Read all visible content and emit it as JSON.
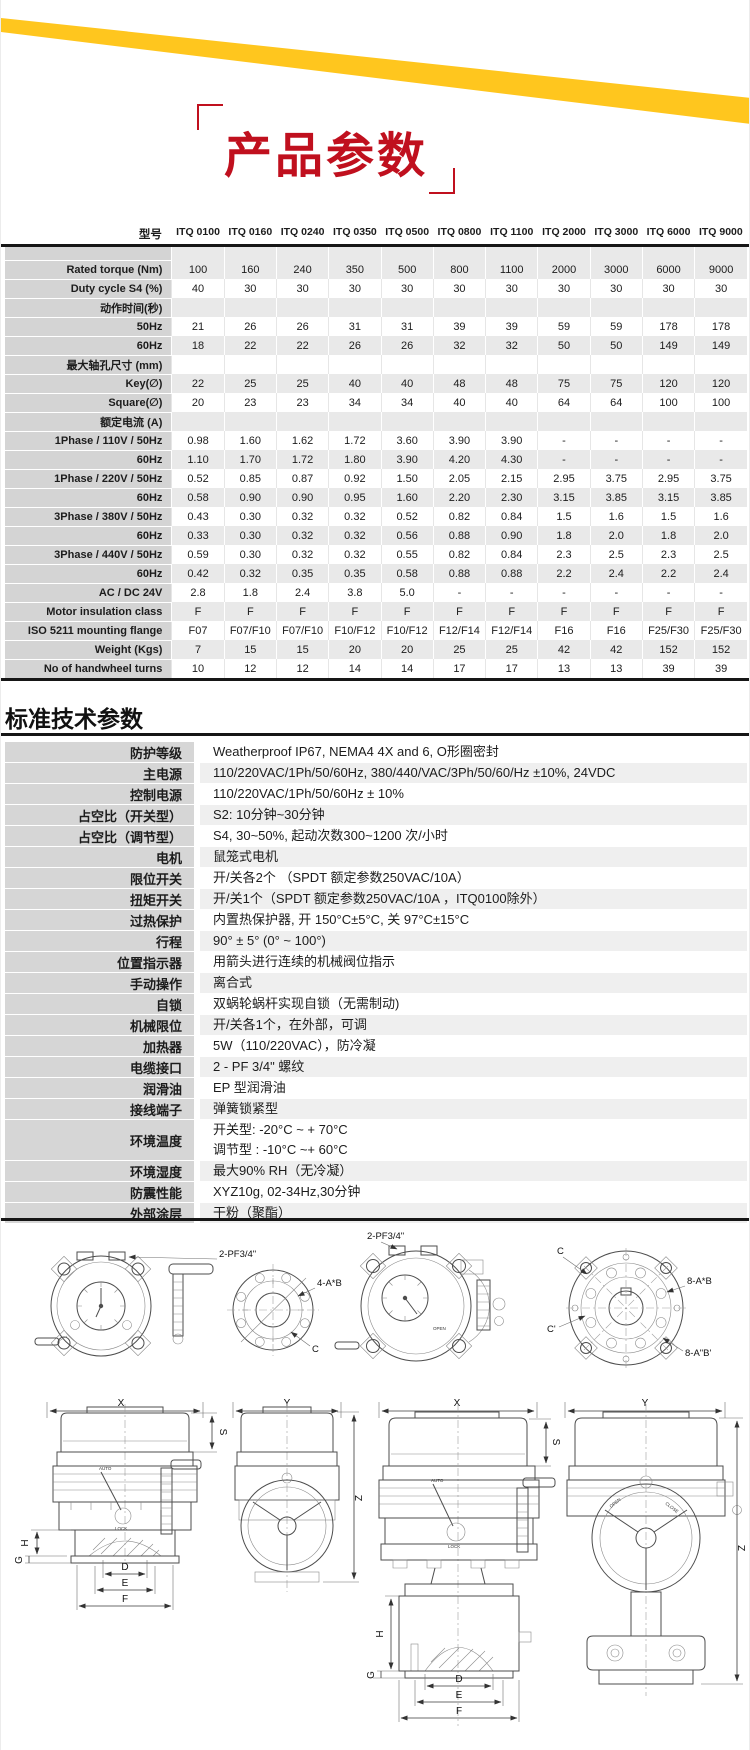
{
  "page": {
    "title": "产品参数",
    "accent_yellow": "#FFC61E",
    "accent_red": "#C0101E"
  },
  "spec_table": {
    "header_label": "型号",
    "models": [
      "ITQ 0100",
      "ITQ 0160",
      "ITQ 0240",
      "ITQ 0350",
      "ITQ 0500",
      "ITQ 0800",
      "ITQ 1100",
      "ITQ 2000",
      "ITQ 3000",
      "ITQ 6000",
      "ITQ 9000"
    ],
    "rows": [
      {
        "label": "Rated torque (Nm)",
        "values": [
          "100",
          "160",
          "240",
          "350",
          "500",
          "800",
          "1100",
          "2000",
          "3000",
          "6000",
          "9000"
        ]
      },
      {
        "label": "Duty cycle S4 (%)",
        "values": [
          "40",
          "30",
          "30",
          "30",
          "30",
          "30",
          "30",
          "30",
          "30",
          "30",
          "30"
        ]
      },
      {
        "label": "动作时间(秒)",
        "values": []
      },
      {
        "label": "50Hz",
        "values": [
          "21",
          "26",
          "26",
          "31",
          "31",
          "39",
          "39",
          "59",
          "59",
          "178",
          "178"
        ]
      },
      {
        "label": "60Hz",
        "values": [
          "18",
          "22",
          "22",
          "26",
          "26",
          "32",
          "32",
          "50",
          "50",
          "149",
          "149"
        ]
      },
      {
        "label": "最大轴孔尺寸 (mm)",
        "values": []
      },
      {
        "label": "Key(∅)",
        "values": [
          "22",
          "25",
          "25",
          "40",
          "40",
          "48",
          "48",
          "75",
          "75",
          "120",
          "120"
        ]
      },
      {
        "label": "Square(∅)",
        "values": [
          "20",
          "23",
          "23",
          "34",
          "34",
          "40",
          "40",
          "64",
          "64",
          "100",
          "100"
        ]
      },
      {
        "label": "额定电流 (A)",
        "values": []
      },
      {
        "label": "1Phase / 110V / 50Hz",
        "values": [
          "0.98",
          "1.60",
          "1.62",
          "1.72",
          "3.60",
          "3.90",
          "3.90",
          "-",
          "-",
          "-",
          "-"
        ]
      },
      {
        "label": "60Hz",
        "values": [
          "1.10",
          "1.70",
          "1.72",
          "1.80",
          "3.90",
          "4.20",
          "4.30",
          "-",
          "-",
          "-",
          "-"
        ]
      },
      {
        "label": "1Phase / 220V / 50Hz",
        "values": [
          "0.52",
          "0.85",
          "0.87",
          "0.92",
          "1.50",
          "2.05",
          "2.15",
          "2.95",
          "3.75",
          "2.95",
          "3.75"
        ]
      },
      {
        "label": "60Hz",
        "values": [
          "0.58",
          "0.90",
          "0.90",
          "0.95",
          "1.60",
          "2.20",
          "2.30",
          "3.15",
          "3.85",
          "3.15",
          "3.85"
        ]
      },
      {
        "label": "3Phase / 380V / 50Hz",
        "values": [
          "0.43",
          "0.30",
          "0.32",
          "0.32",
          "0.52",
          "0.82",
          "0.84",
          "1.5",
          "1.6",
          "1.5",
          "1.6"
        ]
      },
      {
        "label": "60Hz",
        "values": [
          "0.33",
          "0.30",
          "0.32",
          "0.32",
          "0.56",
          "0.88",
          "0.90",
          "1.8",
          "2.0",
          "1.8",
          "2.0"
        ]
      },
      {
        "label": "3Phase / 440V / 50Hz",
        "values": [
          "0.59",
          "0.30",
          "0.32",
          "0.32",
          "0.55",
          "0.82",
          "0.84",
          "2.3",
          "2.5",
          "2.3",
          "2.5"
        ]
      },
      {
        "label": "60Hz",
        "values": [
          "0.42",
          "0.32",
          "0.35",
          "0.35",
          "0.58",
          "0.88",
          "0.88",
          "2.2",
          "2.4",
          "2.2",
          "2.4"
        ]
      },
      {
        "label": "AC / DC 24V",
        "values": [
          "2.8",
          "1.8",
          "2.4",
          "3.8",
          "5.0",
          "-",
          "-",
          "-",
          "-",
          "-",
          "-"
        ]
      },
      {
        "label": "Motor insulation class",
        "values": [
          "F",
          "F",
          "F",
          "F",
          "F",
          "F",
          "F",
          "F",
          "F",
          "F",
          "F"
        ]
      },
      {
        "label": "ISO 5211 mounting flange",
        "values": [
          "F07",
          "F07/F10",
          "F07/F10",
          "F10/F12",
          "F10/F12",
          "F12/F14",
          "F12/F14",
          "F16",
          "F16",
          "F25/F30",
          "F25/F30"
        ]
      },
      {
        "label": "Weight (Kgs)",
        "values": [
          "7",
          "15",
          "15",
          "20",
          "20",
          "25",
          "25",
          "42",
          "42",
          "152",
          "152"
        ]
      },
      {
        "label": "No of handwheel turns",
        "values": [
          "10",
          "12",
          "12",
          "14",
          "14",
          "17",
          "17",
          "13",
          "13",
          "39",
          "39"
        ]
      }
    ]
  },
  "standard_params": {
    "title": "标准技术参数",
    "rows": [
      {
        "label": "防护等级",
        "value": "Weatherproof IP67, NEMA4 4X and 6, O形圈密封"
      },
      {
        "label": "主电源",
        "value": "110/220VAC/1Ph/50/60Hz, 380/440/VAC/3Ph/50/60/Hz ±10%, 24VDC"
      },
      {
        "label": "控制电源",
        "value": "110/220VAC/1Ph/50/60Hz ± 10%"
      },
      {
        "label": "占空比（开关型）",
        "value": "S2: 10分钟~30分钟"
      },
      {
        "label": "占空比（调节型）",
        "value": "S4, 30~50%, 起动次数300~1200 次/小时"
      },
      {
        "label": "电机",
        "value": "鼠笼式电机"
      },
      {
        "label": "限位开关",
        "value": "开/关各2个 （SPDT 额定参数250VAC/10A）"
      },
      {
        "label": "扭矩开关",
        "value": "开/关1个（SPDT 额定参数250VAC/10A ，ITQ0100除外）"
      },
      {
        "label": "过热保护",
        "value": "内置热保护器, 开 150°C±5°C, 关 97°C±15°C"
      },
      {
        "label": "行程",
        "value": "90° ± 5° (0° ~ 100°)"
      },
      {
        "label": "位置指示器",
        "value": "用箭头进行连续的机械阀位指示"
      },
      {
        "label": "手动操作",
        "value": "离合式"
      },
      {
        "label": "自锁",
        "value": "双蜗轮蜗杆实现自锁（无需制动)"
      },
      {
        "label": "机械限位",
        "value": "开/关各1个，在外部，可调"
      },
      {
        "label": "加热器",
        "value": "5W（110/220VAC），防冷凝"
      },
      {
        "label": "电缆接口",
        "value": "2 - PF 3/4\" 螺纹"
      },
      {
        "label": "润滑油",
        "value": "EP 型润滑油"
      },
      {
        "label": "接线端子",
        "value": "弹簧锁紧型"
      },
      {
        "label": "环境温度",
        "value": [
          "开关型: -20°C ~ + 70°C",
          "调节型 : -10°C ~+ 60°C"
        ]
      },
      {
        "label": "环境湿度",
        "value": "最大90% RH（无冷凝）"
      },
      {
        "label": "防震性能",
        "value": "XYZ10g, 02-34Hz,30分钟"
      },
      {
        "label": "外部涂层",
        "value": "干粉（聚酯）"
      }
    ]
  },
  "drawings": {
    "port_label": "2-PF3/4\"",
    "flange_small": "4-A*B",
    "flange_large_outer": "8-A*B",
    "flange_large_inner": "8-A\"B'",
    "label_c": "C",
    "label_c_prime": "C'",
    "wheel_open": "OPEN",
    "wheel_close": "CLOSE",
    "lever_auto": "AUTO",
    "lever_lock": "LOCK",
    "dims": {
      "x": "X",
      "y": "Y",
      "z": "Z",
      "s": "S",
      "h": "H",
      "g": "G",
      "d": "D",
      "e": "E",
      "f": "F"
    }
  }
}
